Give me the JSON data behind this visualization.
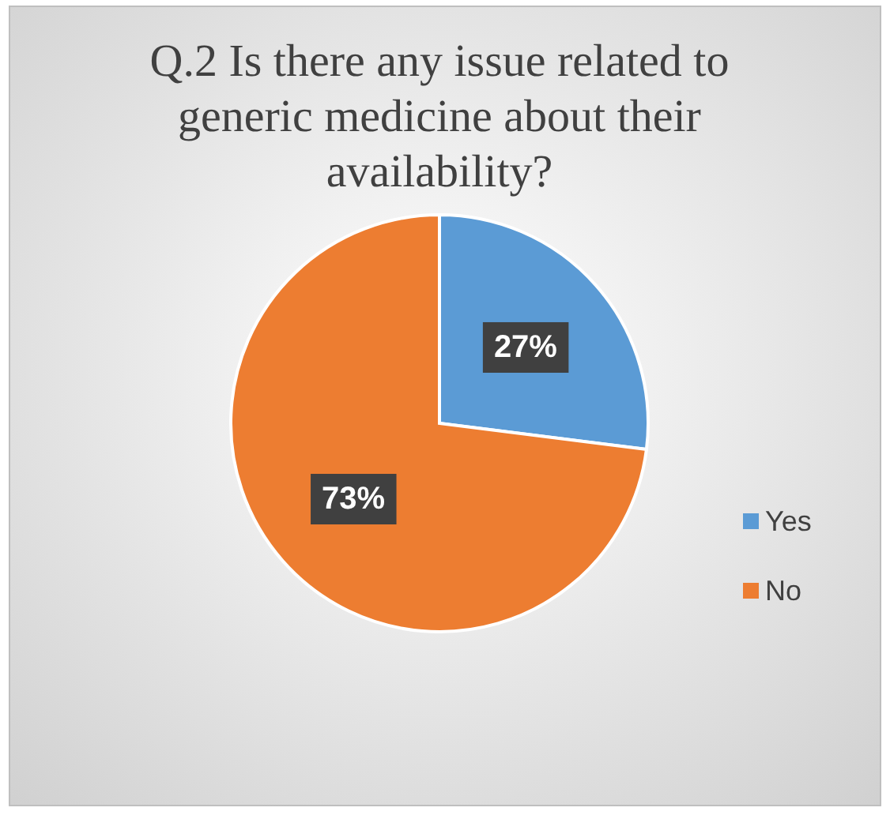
{
  "chart_data": {
    "type": "pie",
    "title": "Q.2 Is there any issue related to generic medicine about their availability?",
    "categories": [
      "Yes",
      "No"
    ],
    "values": [
      27,
      73
    ],
    "colors": [
      "#5b9bd5",
      "#ed7d31"
    ],
    "value_labels": [
      "27%",
      "73%"
    ],
    "legend": "right"
  }
}
